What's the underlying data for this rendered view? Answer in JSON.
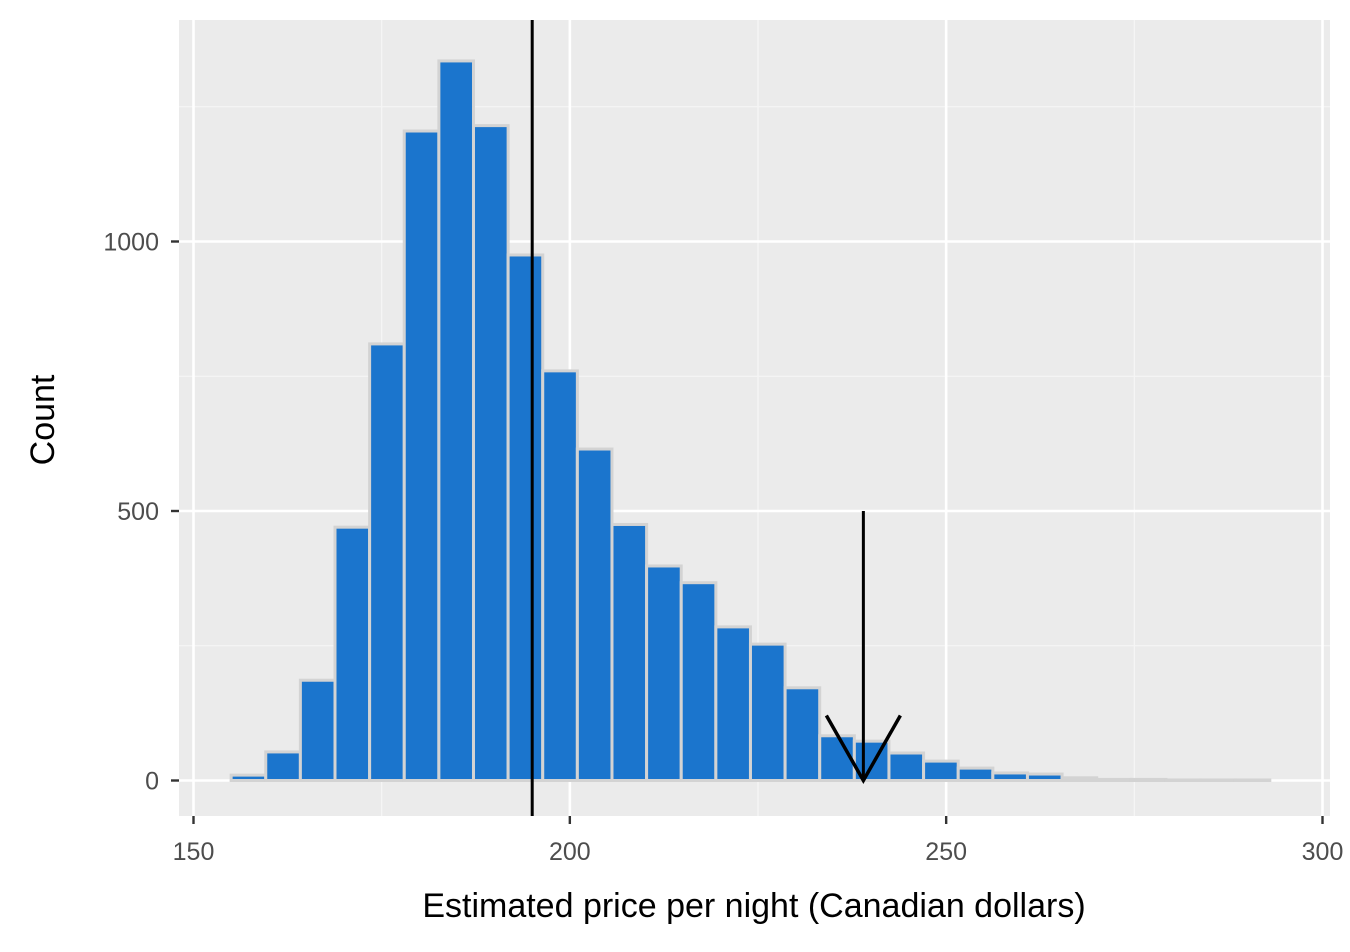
{
  "chart_data": {
    "type": "bar",
    "subtype": "histogram",
    "title": "",
    "xlabel": "Estimated price per night (Canadian dollars)",
    "ylabel": "Count",
    "xlim": [
      150,
      300
    ],
    "ylim": [
      0,
      1400
    ],
    "x_ticks": [
      150,
      200,
      250,
      300
    ],
    "y_ticks": [
      0,
      500,
      1000
    ],
    "bin_width": 4.6,
    "bins": [
      {
        "x0": 155.0,
        "x1": 159.6,
        "count": 10
      },
      {
        "x0": 159.6,
        "x1": 164.2,
        "count": 53
      },
      {
        "x0": 164.2,
        "x1": 168.8,
        "count": 186
      },
      {
        "x0": 168.8,
        "x1": 173.4,
        "count": 470
      },
      {
        "x0": 173.4,
        "x1": 178.0,
        "count": 810
      },
      {
        "x0": 178.0,
        "x1": 182.6,
        "count": 1205
      },
      {
        "x0": 182.6,
        "x1": 187.2,
        "count": 1335
      },
      {
        "x0": 187.2,
        "x1": 191.8,
        "count": 1215
      },
      {
        "x0": 191.8,
        "x1": 196.4,
        "count": 975
      },
      {
        "x0": 196.4,
        "x1": 201.0,
        "count": 760
      },
      {
        "x0": 201.0,
        "x1": 205.6,
        "count": 615
      },
      {
        "x0": 205.6,
        "x1": 210.2,
        "count": 475
      },
      {
        "x0": 210.2,
        "x1": 214.8,
        "count": 398
      },
      {
        "x0": 214.8,
        "x1": 219.4,
        "count": 367
      },
      {
        "x0": 219.4,
        "x1": 224.0,
        "count": 285
      },
      {
        "x0": 224.0,
        "x1": 228.6,
        "count": 253
      },
      {
        "x0": 228.6,
        "x1": 233.2,
        "count": 172
      },
      {
        "x0": 233.2,
        "x1": 237.8,
        "count": 83
      },
      {
        "x0": 237.8,
        "x1": 242.4,
        "count": 73
      },
      {
        "x0": 242.4,
        "x1": 247.0,
        "count": 51
      },
      {
        "x0": 247.0,
        "x1": 251.6,
        "count": 36
      },
      {
        "x0": 251.6,
        "x1": 256.2,
        "count": 23
      },
      {
        "x0": 256.2,
        "x1": 260.8,
        "count": 14
      },
      {
        "x0": 260.8,
        "x1": 265.4,
        "count": 12
      },
      {
        "x0": 265.4,
        "x1": 270.0,
        "count": 5
      },
      {
        "x0": 270.0,
        "x1": 274.6,
        "count": 2
      },
      {
        "x0": 274.6,
        "x1": 279.2,
        "count": 2
      },
      {
        "x0": 279.2,
        "x1": 283.8,
        "count": 1
      },
      {
        "x0": 283.8,
        "x1": 288.4,
        "count": 1
      },
      {
        "x0": 288.4,
        "x1": 293.0,
        "count": 1
      }
    ],
    "vertical_line": {
      "x": 195
    },
    "arrow": {
      "x": 239,
      "y_start": 500,
      "y_end": 0
    },
    "grid": true,
    "legend": "none",
    "colors": {
      "bar_fill": "#1b75cd",
      "bar_outline": "#d3d3d3",
      "panel_background": "#ebebeb",
      "grid_major": "#ffffff",
      "grid_minor": "#f5f5f5",
      "reference_line": "#000000",
      "arrow": "#000000"
    }
  }
}
